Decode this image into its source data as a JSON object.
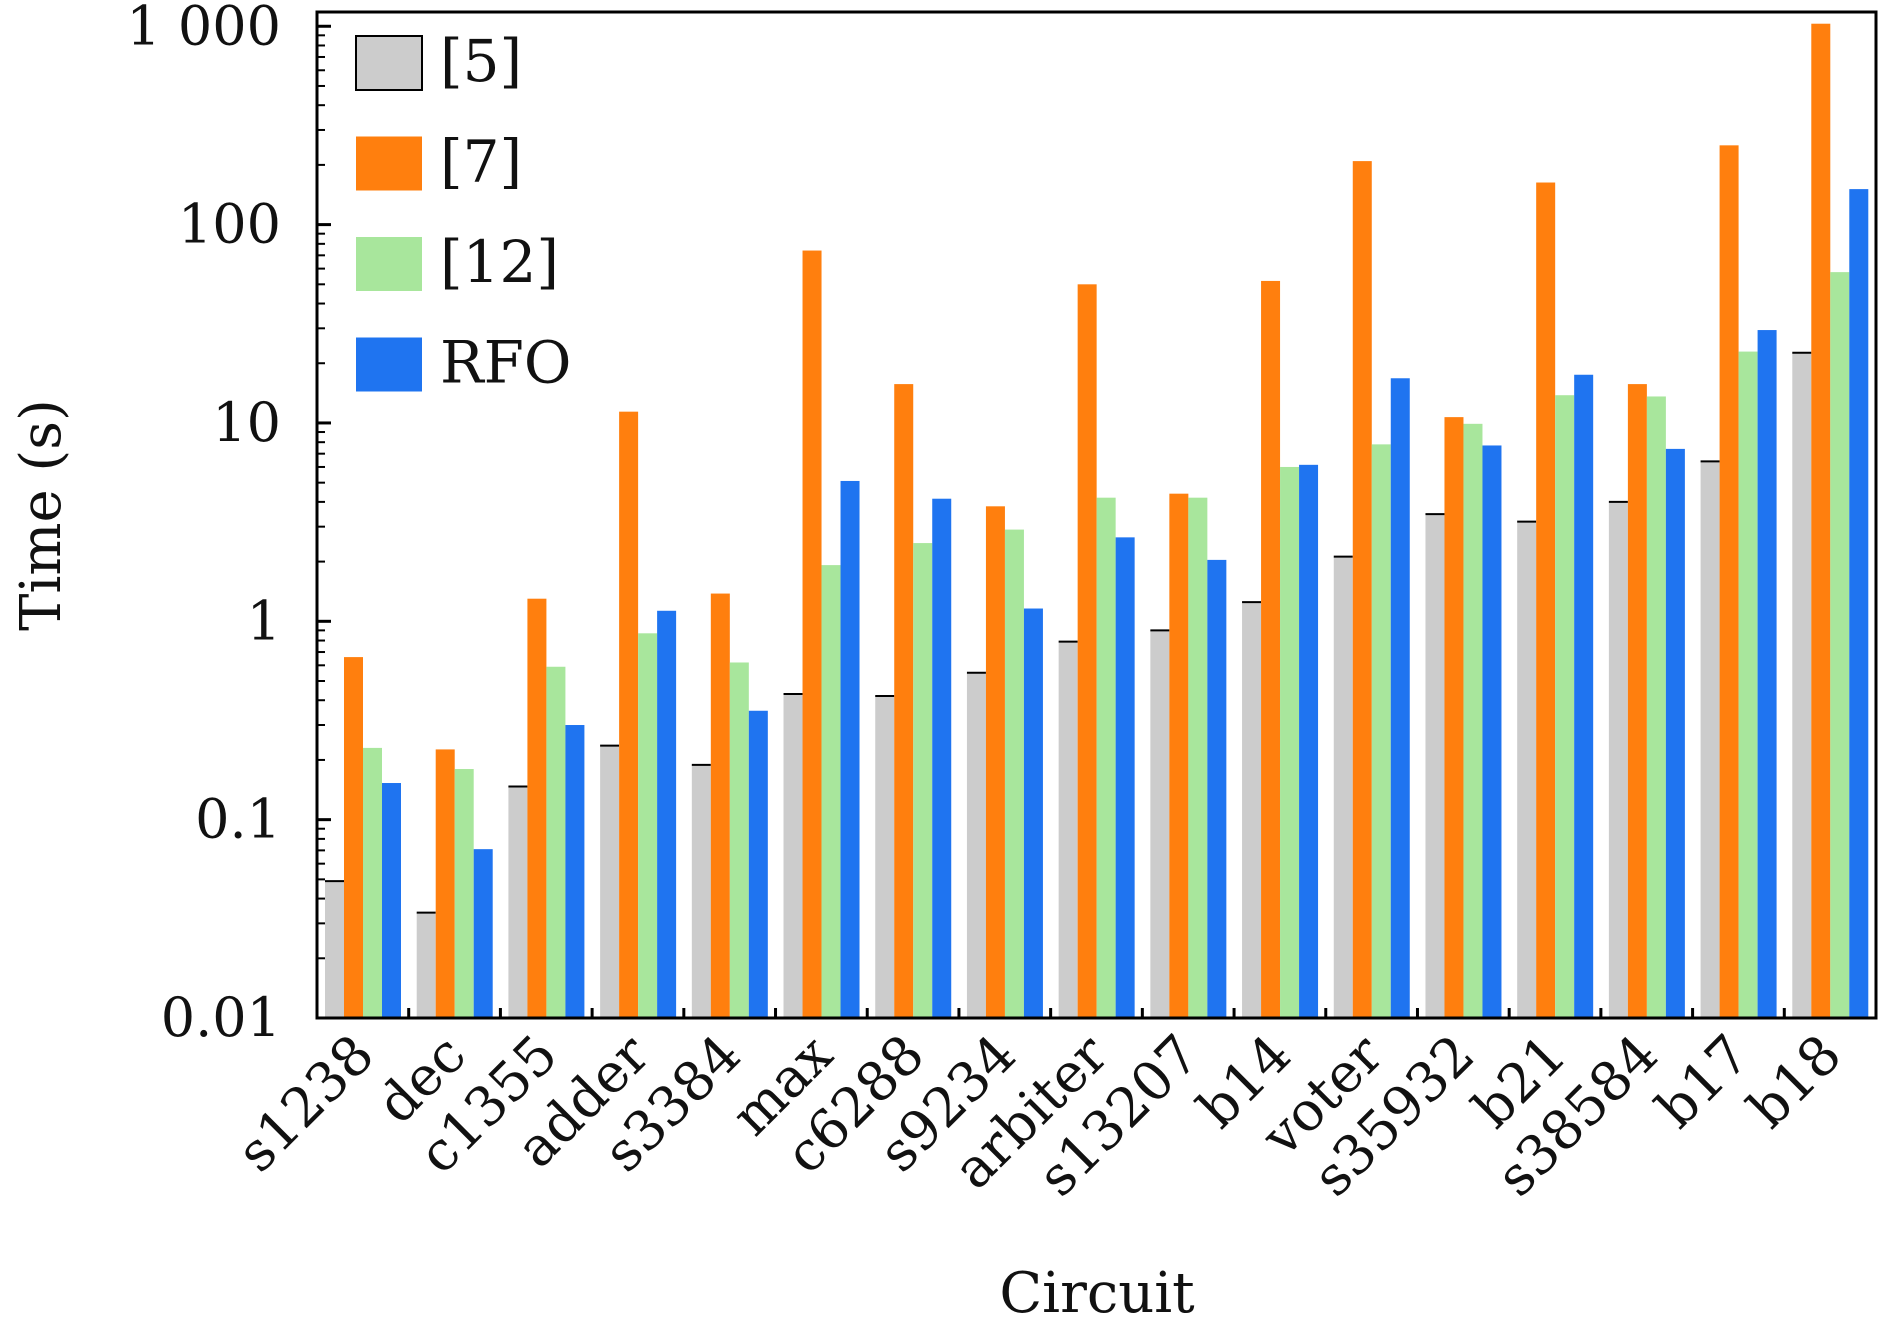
{
  "chart_data": {
    "type": "bar",
    "xlabel": "Circuit",
    "ylabel": "Time (s)",
    "yscale": "log",
    "ylim": [
      0.01,
      1180
    ],
    "yticks": [
      0.01,
      0.1,
      1,
      10,
      100,
      1000
    ],
    "ytick_labels": [
      "0.01",
      "0.1",
      "1",
      "10",
      "100",
      "1 000"
    ],
    "grid": false,
    "legend_position": "top-left",
    "categories": [
      "s1238",
      "dec",
      "c1355",
      "adder",
      "s3384",
      "max",
      "c6288",
      "s9234",
      "arbiter",
      "s13207",
      "b14",
      "voter",
      "s35932",
      "b21",
      "s38584",
      "b17",
      "b18"
    ],
    "series": [
      {
        "name": "[5]",
        "color": "#cccccc",
        "values": [
          0.049,
          0.034,
          0.147,
          0.236,
          0.189,
          0.43,
          0.42,
          0.55,
          0.79,
          0.9,
          1.25,
          2.12,
          3.47,
          3.18,
          4.0,
          6.4,
          22.6
        ]
      },
      {
        "name": "[7]",
        "color": "#ff7f0e",
        "values": [
          0.66,
          0.226,
          1.3,
          11.4,
          1.38,
          74,
          15.7,
          3.8,
          50,
          4.4,
          52,
          209,
          10.7,
          163,
          15.7,
          251,
          1030
        ]
      },
      {
        "name": "[12]",
        "color": "#a8e69c",
        "values": [
          0.23,
          0.18,
          0.59,
          0.87,
          0.62,
          1.92,
          2.48,
          2.9,
          4.2,
          4.2,
          6.0,
          7.8,
          9.9,
          13.8,
          13.6,
          22.9,
          57.6
        ]
      },
      {
        "name": "RFO",
        "color": "#1f74f0",
        "values": [
          0.153,
          0.071,
          0.3,
          1.13,
          0.354,
          5.1,
          4.15,
          1.16,
          2.65,
          2.04,
          6.15,
          16.8,
          7.7,
          17.5,
          7.4,
          29.4,
          151
        ]
      }
    ]
  }
}
